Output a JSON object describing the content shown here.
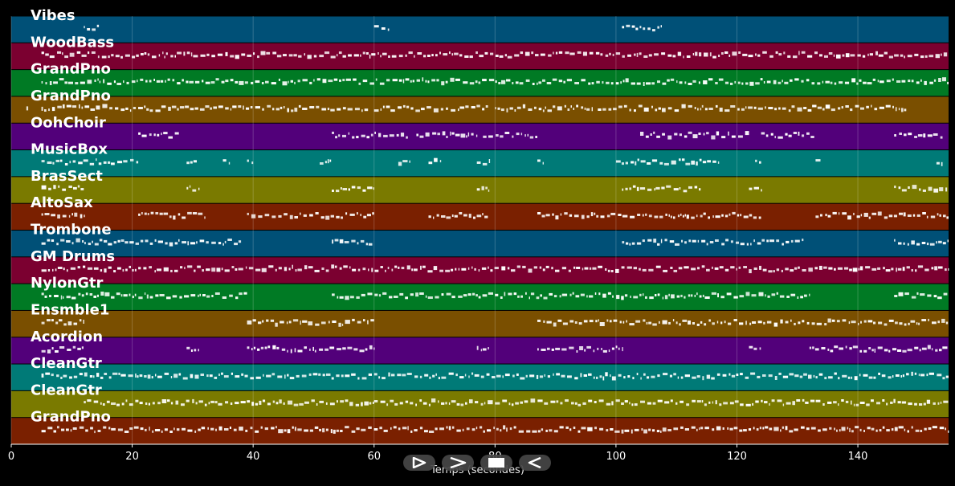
{
  "chart_data": {
    "type": "piano-roll",
    "xlabel": "Temps (secondes)",
    "xlim": [
      0,
      155
    ],
    "xticks": [
      0,
      20,
      40,
      60,
      80,
      100,
      120,
      140
    ],
    "grid": true,
    "tracks": [
      {
        "name": "Vibes",
        "color": "#005077",
        "segments": [
          [
            12,
            14.5
          ],
          [
            60,
            62.5
          ],
          [
            101,
            107.5
          ]
        ]
      },
      {
        "name": "WoodBass",
        "color": "#7b0030",
        "segments": [
          [
            5,
            155
          ]
        ]
      },
      {
        "name": "GrandPno",
        "color": "#007a24",
        "segments": [
          [
            5,
            155
          ]
        ]
      },
      {
        "name": "GrandPno",
        "color": "#7a4f00",
        "segments": [
          [
            2.5,
            3
          ],
          [
            5,
            59
          ],
          [
            60,
            79
          ],
          [
            80,
            96
          ],
          [
            97,
            148
          ]
        ]
      },
      {
        "name": "OohChoir",
        "color": "#52007a",
        "segments": [
          [
            21,
            28
          ],
          [
            53,
            66
          ],
          [
            67,
            77
          ],
          [
            78,
            87
          ],
          [
            104,
            122
          ],
          [
            124,
            133
          ],
          [
            146,
            154
          ]
        ]
      },
      {
        "name": "MusicBox",
        "color": "#007a77",
        "segments": [
          [
            5,
            21
          ],
          [
            29,
            31
          ],
          [
            35,
            36
          ],
          [
            39,
            40
          ],
          [
            51,
            53
          ],
          [
            64,
            66
          ],
          [
            69,
            71
          ],
          [
            77,
            79
          ],
          [
            87,
            88
          ],
          [
            100,
            117
          ],
          [
            123,
            124
          ],
          [
            133,
            134
          ],
          [
            153,
            154
          ]
        ]
      },
      {
        "name": "BrasSect",
        "color": "#7a7a00",
        "segments": [
          [
            5,
            12
          ],
          [
            29,
            31
          ],
          [
            53,
            60
          ],
          [
            77,
            79
          ],
          [
            101,
            114
          ],
          [
            122,
            124
          ],
          [
            146,
            155
          ]
        ]
      },
      {
        "name": "AltoSax",
        "color": "#7a2000",
        "segments": [
          [
            5,
            12
          ],
          [
            21,
            32
          ],
          [
            39,
            60
          ],
          [
            69,
            79
          ],
          [
            87,
            124
          ],
          [
            133,
            155
          ]
        ]
      },
      {
        "name": "Trombone",
        "color": "#005077",
        "segments": [
          [
            5,
            38
          ],
          [
            53,
            60
          ],
          [
            101,
            131
          ],
          [
            146,
            155
          ]
        ]
      },
      {
        "name": "GM Drums",
        "color": "#7b0030",
        "segments": [
          [
            5,
            155
          ]
        ]
      },
      {
        "name": "NylonGtr",
        "color": "#007a24",
        "segments": [
          [
            5,
            39
          ],
          [
            53,
            132
          ],
          [
            146,
            155
          ]
        ]
      },
      {
        "name": "Ensmble1",
        "color": "#7a4f00",
        "segments": [
          [
            5,
            12
          ],
          [
            39,
            60
          ],
          [
            87,
            155
          ]
        ]
      },
      {
        "name": "Acordion",
        "color": "#52007a",
        "segments": [
          [
            5,
            12
          ],
          [
            29,
            31
          ],
          [
            39,
            60
          ],
          [
            77,
            79
          ],
          [
            87,
            101
          ],
          [
            122,
            124
          ],
          [
            132,
            155
          ]
        ]
      },
      {
        "name": "CleanGtr",
        "color": "#007a77",
        "segments": [
          [
            5,
            155
          ]
        ]
      },
      {
        "name": "CleanGtr",
        "color": "#7a7a00",
        "segments": [
          [
            12,
            60
          ],
          [
            60,
            155
          ]
        ]
      },
      {
        "name": "GrandPno",
        "color": "#7a2000",
        "segments": [
          [
            5,
            155
          ]
        ]
      }
    ]
  },
  "controls": {
    "icons": [
      "play-icon",
      "fast-forward-icon",
      "stop-icon",
      "rewind-icon"
    ]
  }
}
